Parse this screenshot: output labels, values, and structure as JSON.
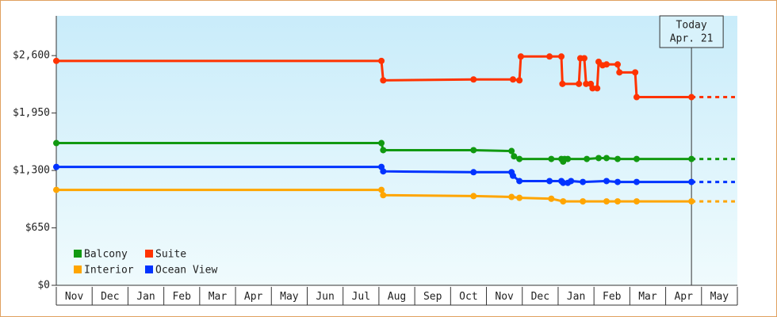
{
  "chart_data": {
    "type": "line",
    "categories": [
      "Nov",
      "Dec",
      "Jan",
      "Feb",
      "Mar",
      "Apr",
      "May",
      "Jun",
      "Jul",
      "Aug",
      "Sep",
      "Oct",
      "Nov",
      "Dec",
      "Jan",
      "Feb",
      "Mar",
      "Apr",
      "May"
    ],
    "xlim": [
      0,
      19
    ],
    "ylim": [
      0,
      3050
    ],
    "yticks": [
      {
        "value": 0,
        "label": "$0"
      },
      {
        "value": 650,
        "label": "$650"
      },
      {
        "value": 1300,
        "label": "$1,300"
      },
      {
        "value": 1950,
        "label": "$1,950"
      },
      {
        "value": 2600,
        "label": "$2,600"
      }
    ],
    "annotation": {
      "lines": [
        "Today",
        "Apr. 21"
      ],
      "x": 17.72
    },
    "series": [
      {
        "name": "Balcony",
        "color": "#119911",
        "x": [
          0,
          9.07,
          9.12,
          11.64,
          12.7,
          12.77,
          12.92,
          13.81,
          14.09,
          14.14,
          14.18,
          14.27,
          14.8,
          15.13,
          15.35,
          15.66,
          16.19,
          17.72
        ],
        "values": [
          1610,
          1610,
          1530,
          1530,
          1520,
          1460,
          1430,
          1430,
          1430,
          1400,
          1430,
          1430,
          1430,
          1440,
          1440,
          1430,
          1430,
          1430
        ]
      },
      {
        "name": "Suite",
        "color": "#ff3300",
        "x": [
          0,
          9.07,
          9.12,
          11.64,
          12.74,
          12.92,
          12.96,
          13.76,
          14.09,
          14.12,
          14.58,
          14.62,
          14.73,
          14.78,
          14.91,
          14.96,
          15.09,
          15.13,
          15.24,
          15.35,
          15.66,
          15.71,
          16.15,
          16.19,
          17.72
        ],
        "values": [
          2540,
          2540,
          2320,
          2330,
          2330,
          2320,
          2590,
          2590,
          2590,
          2280,
          2280,
          2570,
          2570,
          2280,
          2280,
          2230,
          2230,
          2530,
          2490,
          2500,
          2500,
          2410,
          2410,
          2130,
          2130
        ]
      },
      {
        "name": "Interior",
        "color": "#ffa500",
        "x": [
          0,
          9.07,
          9.12,
          11.64,
          12.7,
          12.92,
          13.81,
          14.14,
          14.69,
          15.35,
          15.66,
          16.19,
          17.72
        ],
        "values": [
          1080,
          1080,
          1020,
          1010,
          1000,
          990,
          980,
          950,
          950,
          950,
          950,
          950,
          950
        ]
      },
      {
        "name": "Ocean View",
        "color": "#0033ff",
        "x": [
          0,
          9.07,
          9.12,
          11.64,
          12.7,
          12.74,
          12.92,
          13.76,
          14.09,
          14.14,
          14.27,
          14.36,
          14.69,
          15.35,
          15.66,
          16.19,
          17.72
        ],
        "values": [
          1340,
          1340,
          1290,
          1280,
          1280,
          1240,
          1180,
          1180,
          1180,
          1160,
          1160,
          1180,
          1170,
          1180,
          1170,
          1170,
          1170
        ]
      }
    ]
  }
}
